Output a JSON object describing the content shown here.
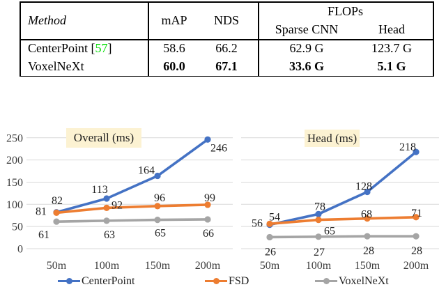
{
  "colors": {
    "centerpoint_blue": "#4472C4",
    "fsd_orange": "#ED7D31",
    "voxelnext_gray": "#A5A5A5",
    "gridline": "#D9D9D9",
    "title_highlight": "#FCF2D2",
    "citation_green": "#00DD00"
  },
  "table": {
    "headers": {
      "method": "Method",
      "map": "mAP",
      "nds": "NDS",
      "flops": "FLOPs",
      "sparse_cnn": "Sparse CNN",
      "head": "Head"
    },
    "rows": [
      {
        "method": "CenterPoint",
        "cite_open": " [",
        "cite": "57",
        "cite_close": "]",
        "map": "58.6",
        "nds": "66.2",
        "sparse_cnn": "62.9 G",
        "head": "123.7 G"
      },
      {
        "method": "VoxelNeXt",
        "map": "60.0",
        "nds": "67.1",
        "sparse_cnn": "33.6 G",
        "head": "5.1 G"
      }
    ]
  },
  "chart_data": [
    {
      "type": "line",
      "title": "Overall (ms)",
      "categories": [
        "50m",
        "100m",
        "150m",
        "200m"
      ],
      "series": [
        {
          "name": "CenterPoint",
          "color": "#4472C4",
          "values": [
            82,
            113,
            164,
            246
          ]
        },
        {
          "name": "FSD",
          "color": "#ED7D31",
          "values": [
            81,
            92,
            96,
            99
          ]
        },
        {
          "name": "VoxelNeXt",
          "color": "#A5A5A5",
          "values": [
            61,
            63,
            65,
            66
          ]
        }
      ],
      "xlabel": "",
      "ylabel": "",
      "ylim": [
        0,
        250
      ],
      "yticks": [
        0,
        50,
        100,
        150,
        200,
        250
      ],
      "grid": true,
      "show_y_labels": true,
      "data_labels": true,
      "legend_position": "bottom"
    },
    {
      "type": "line",
      "title": "Head (ms)",
      "categories": [
        "50m",
        "100m",
        "150m",
        "200m"
      ],
      "series": [
        {
          "name": "CenterPoint",
          "color": "#4472C4",
          "values": [
            54,
            78,
            128,
            218
          ]
        },
        {
          "name": "FSD",
          "color": "#ED7D31",
          "values": [
            56,
            65,
            68,
            71
          ]
        },
        {
          "name": "VoxelNeXt",
          "color": "#A5A5A5",
          "values": [
            26,
            27,
            28,
            28
          ]
        }
      ],
      "xlabel": "",
      "ylabel": "",
      "ylim": [
        0,
        250
      ],
      "yticks": [
        0,
        50,
        100,
        150,
        200,
        250
      ],
      "grid": true,
      "show_y_labels": false,
      "data_labels": true,
      "legend_position": "bottom"
    }
  ],
  "legend": [
    {
      "label": "CenterPoint",
      "color": "#4472C4"
    },
    {
      "label": "FSD",
      "color": "#ED7D31"
    },
    {
      "label": "VoxelNeXt",
      "color": "#A5A5A5"
    }
  ]
}
